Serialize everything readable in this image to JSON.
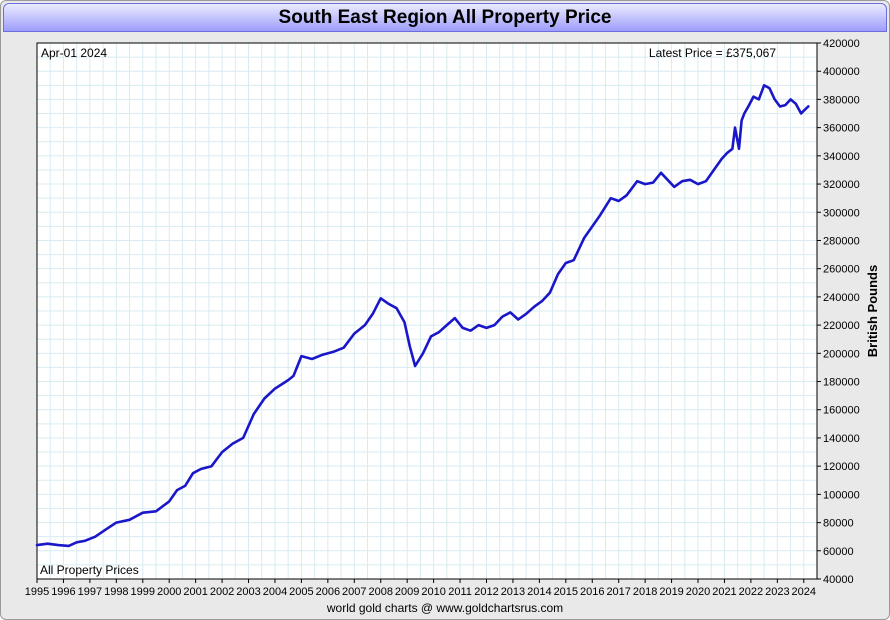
{
  "chart_data": {
    "type": "line",
    "title": "South East Region All Property Price",
    "date_label": "Apr-01  2024",
    "latest_label": "Latest Price = £375,067",
    "series_label": "All Property Prices",
    "ylabel": "British Pounds",
    "footer": "world gold charts @ www.goldchartsrus.com",
    "line_color": "#1a17c8",
    "grid": true,
    "ylim": [
      40000,
      420000
    ],
    "yticks": [
      40000,
      60000,
      80000,
      100000,
      120000,
      140000,
      160000,
      180000,
      200000,
      220000,
      240000,
      260000,
      280000,
      300000,
      320000,
      340000,
      360000,
      380000,
      400000,
      420000
    ],
    "xlim": [
      1995.0,
      2024.5
    ],
    "xticks": [
      1995,
      1996,
      1997,
      1998,
      1999,
      2000,
      2001,
      2002,
      2003,
      2004,
      2005,
      2006,
      2007,
      2008,
      2009,
      2010,
      2011,
      2012,
      2013,
      2014,
      2015,
      2016,
      2017,
      2018,
      2019,
      2020,
      2021,
      2022,
      2023,
      2024
    ],
    "series": [
      {
        "x": [
          1995.0,
          1995.4,
          1995.8,
          1996.2,
          1996.5,
          1996.8,
          1997.2,
          1997.6,
          1998.0,
          1998.5,
          1999.0,
          1999.5,
          2000.0,
          2000.3,
          2000.6,
          2000.9,
          2001.2,
          2001.6,
          2002.0,
          2002.4,
          2002.8,
          2003.2,
          2003.6,
          2004.0,
          2004.5,
          2004.7,
          2005.0,
          2005.4,
          2005.8,
          2006.2,
          2006.6,
          2007.0,
          2007.4,
          2007.7,
          2008.0,
          2008.3,
          2008.6,
          2008.9,
          2009.1,
          2009.3,
          2009.6,
          2009.9,
          2010.2,
          2010.5,
          2010.8,
          2011.1,
          2011.4,
          2011.7,
          2012.0,
          2012.3,
          2012.6,
          2012.9,
          2013.2,
          2013.5,
          2013.8,
          2014.1,
          2014.4,
          2014.7,
          2015.0,
          2015.3,
          2015.7,
          2016.0,
          2016.3,
          2016.7,
          2017.0,
          2017.3,
          2017.7,
          2018.0,
          2018.3,
          2018.6,
          2018.9,
          2019.1,
          2019.4,
          2019.7,
          2020.0,
          2020.3,
          2020.6,
          2020.9,
          2021.1,
          2021.3,
          2021.4,
          2021.55,
          2021.65,
          2021.75,
          2021.9,
          2022.1,
          2022.3,
          2022.5,
          2022.7,
          2022.9,
          2023.1,
          2023.3,
          2023.5,
          2023.7,
          2023.9,
          2024.0,
          2024.17
        ],
        "values": [
          64000,
          65000,
          64000,
          63500,
          66000,
          67000,
          70000,
          75000,
          80000,
          82000,
          87000,
          88000,
          95000,
          103000,
          106000,
          115000,
          118000,
          120000,
          130000,
          136000,
          140000,
          157000,
          168000,
          175000,
          181000,
          184000,
          198000,
          196000,
          199000,
          201000,
          204000,
          214000,
          220000,
          228000,
          239000,
          235000,
          232000,
          222000,
          205000,
          191000,
          200000,
          212000,
          215000,
          220000,
          225000,
          218000,
          216000,
          220000,
          218000,
          220000,
          226000,
          229000,
          224000,
          228000,
          233000,
          237000,
          243000,
          256000,
          264000,
          266000,
          282000,
          290000,
          298000,
          310000,
          308000,
          312000,
          322000,
          320000,
          321000,
          328000,
          322000,
          318000,
          322000,
          323000,
          320000,
          322000,
          330000,
          338000,
          342000,
          345000,
          360000,
          345000,
          365000,
          370000,
          375000,
          382000,
          380000,
          390000,
          388000,
          380000,
          375000,
          376000,
          380000,
          377000,
          370000,
          372000,
          375067
        ]
      }
    ]
  }
}
